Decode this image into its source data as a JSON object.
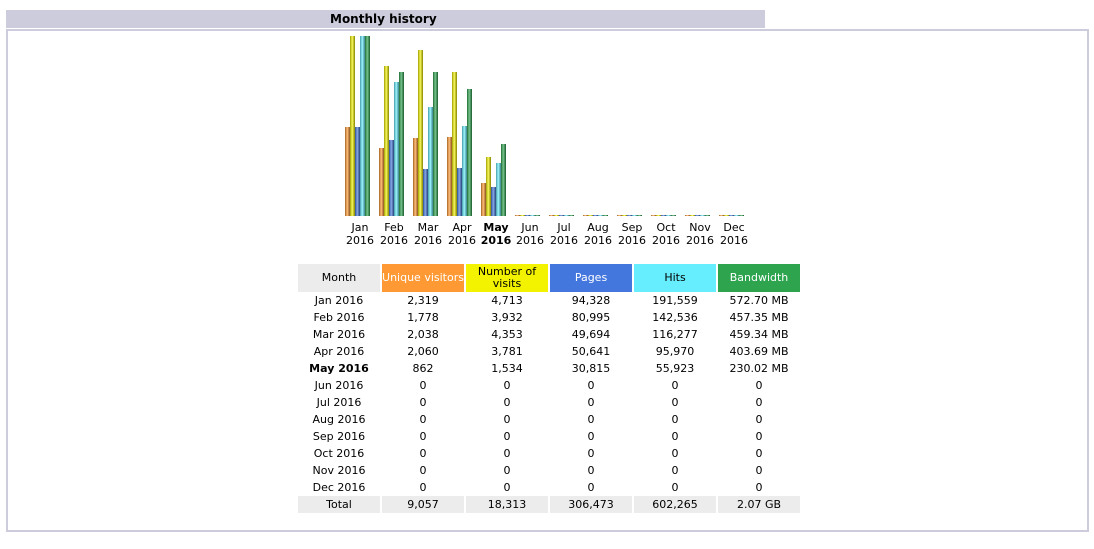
{
  "section": {
    "title": "Monthly history"
  },
  "table": {
    "headers": {
      "month": "Month",
      "unique": "Unique visitors",
      "visits": "Number of visits",
      "pages": "Pages",
      "hits": "Hits",
      "bandwidth": "Bandwidth"
    },
    "rows": [
      {
        "month": "Jan 2016",
        "unique": "2,319",
        "visits": "4,713",
        "pages": "94,328",
        "hits": "191,559",
        "bandwidth": "572.70 MB"
      },
      {
        "month": "Feb 2016",
        "unique": "1,778",
        "visits": "3,932",
        "pages": "80,995",
        "hits": "142,536",
        "bandwidth": "457.35 MB"
      },
      {
        "month": "Mar 2016",
        "unique": "2,038",
        "visits": "4,353",
        "pages": "49,694",
        "hits": "116,277",
        "bandwidth": "459.34 MB"
      },
      {
        "month": "Apr 2016",
        "unique": "2,060",
        "visits": "3,781",
        "pages": "50,641",
        "hits": "95,970",
        "bandwidth": "403.69 MB"
      },
      {
        "month": "May 2016",
        "unique": "862",
        "visits": "1,534",
        "pages": "30,815",
        "hits": "55,923",
        "bandwidth": "230.02 MB"
      },
      {
        "month": "Jun 2016",
        "unique": "0",
        "visits": "0",
        "pages": "0",
        "hits": "0",
        "bandwidth": "0"
      },
      {
        "month": "Jul 2016",
        "unique": "0",
        "visits": "0",
        "pages": "0",
        "hits": "0",
        "bandwidth": "0"
      },
      {
        "month": "Aug 2016",
        "unique": "0",
        "visits": "0",
        "pages": "0",
        "hits": "0",
        "bandwidth": "0"
      },
      {
        "month": "Sep 2016",
        "unique": "0",
        "visits": "0",
        "pages": "0",
        "hits": "0",
        "bandwidth": "0"
      },
      {
        "month": "Oct 2016",
        "unique": "0",
        "visits": "0",
        "pages": "0",
        "hits": "0",
        "bandwidth": "0"
      },
      {
        "month": "Nov 2016",
        "unique": "0",
        "visits": "0",
        "pages": "0",
        "hits": "0",
        "bandwidth": "0"
      },
      {
        "month": "Dec 2016",
        "unique": "0",
        "visits": "0",
        "pages": "0",
        "hits": "0",
        "bandwidth": "0"
      }
    ],
    "total": {
      "month": "Total",
      "unique": "9,057",
      "visits": "18,313",
      "pages": "306,473",
      "hits": "602,265",
      "bandwidth": "2.07 GB"
    }
  },
  "chart_data": {
    "type": "bar",
    "categories": [
      "Jan 2016",
      "Feb 2016",
      "Mar 2016",
      "Apr 2016",
      "May 2016",
      "Jun 2016",
      "Jul 2016",
      "Aug 2016",
      "Sep 2016",
      "Oct 2016",
      "Nov 2016",
      "Dec 2016"
    ],
    "month_labels": [
      "Jan",
      "Feb",
      "Mar",
      "Apr",
      "May",
      "Jun",
      "Jul",
      "Aug",
      "Sep",
      "Oct",
      "Nov",
      "Dec"
    ],
    "year_label": "2016",
    "current_index": 4,
    "series": [
      {
        "name": "Unique visitors",
        "color": "#ff9933",
        "values": [
          2319,
          1778,
          2038,
          2060,
          862,
          0,
          0,
          0,
          0,
          0,
          0,
          0
        ]
      },
      {
        "name": "Number of visits",
        "color": "#f3f300",
        "values": [
          4713,
          3932,
          4353,
          3781,
          1534,
          0,
          0,
          0,
          0,
          0,
          0,
          0
        ]
      },
      {
        "name": "Pages",
        "color": "#4477dd",
        "values": [
          94328,
          80995,
          49694,
          50641,
          30815,
          0,
          0,
          0,
          0,
          0,
          0,
          0
        ]
      },
      {
        "name": "Hits",
        "color": "#66eeff",
        "values": [
          191559,
          142536,
          116277,
          95970,
          55923,
          0,
          0,
          0,
          0,
          0,
          0,
          0
        ]
      },
      {
        "name": "Bandwidth",
        "color": "#2ea44f",
        "values": [
          572.7,
          457.35,
          459.34,
          403.69,
          230.02,
          0,
          0,
          0,
          0,
          0,
          0,
          0
        ]
      }
    ],
    "scale_groups": [
      [
        0,
        1
      ],
      [
        2,
        3
      ],
      [
        4
      ]
    ]
  }
}
